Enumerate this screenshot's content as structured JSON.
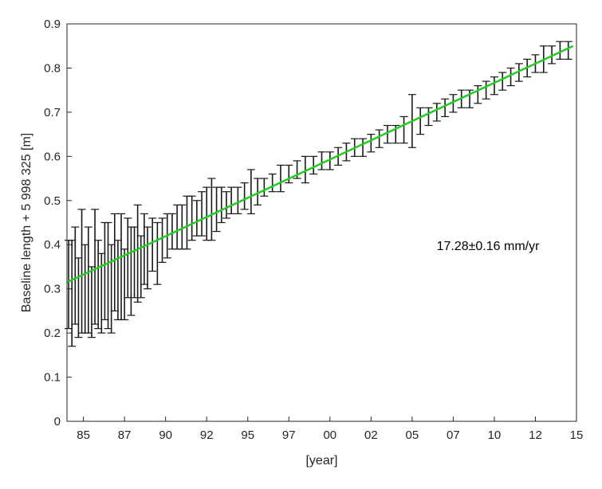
{
  "chart_data": {
    "type": "scatter",
    "title": "",
    "xlabel": "[year]",
    "ylabel": "Baseline length + 5 998 325 [m]",
    "xlim": [
      1984.0,
      2015.0
    ],
    "ylim": [
      0,
      0.9
    ],
    "xticks": [
      {
        "value": 1985,
        "label": "85"
      },
      {
        "value": 1987.5,
        "label": "87"
      },
      {
        "value": 1990,
        "label": "90"
      },
      {
        "value": 1992.5,
        "label": "92"
      },
      {
        "value": 1995,
        "label": "95"
      },
      {
        "value": 1997.5,
        "label": "97"
      },
      {
        "value": 2000,
        "label": "00"
      },
      {
        "value": 2002.5,
        "label": "02"
      },
      {
        "value": 2005,
        "label": "05"
      },
      {
        "value": 2007.5,
        "label": "07"
      },
      {
        "value": 2010,
        "label": "10"
      },
      {
        "value": 2012.5,
        "label": "12"
      },
      {
        "value": 2015,
        "label": "15"
      }
    ],
    "yticks": [
      0,
      0.1,
      0.2,
      0.3,
      0.4,
      0.5,
      0.6,
      0.7,
      0.8,
      0.9
    ],
    "ytick_labels": [
      "0",
      "0.1",
      "0.2",
      "0.3",
      "0.4",
      "0.5",
      "0.6",
      "0.7",
      "0.8",
      "0.9"
    ],
    "grid": false,
    "fit_line": {
      "x": [
        1984.0,
        2014.8
      ],
      "y": [
        0.315,
        0.85
      ],
      "color": "#22cc22"
    },
    "annotation": "17.28±0.16 mm/yr",
    "errorbar_color": "#1a1a1a",
    "series": [
      {
        "x": [
          1984.1,
          1984.3,
          1984.5,
          1984.7,
          1984.9,
          1985.1,
          1985.3,
          1985.5,
          1985.7,
          1985.9,
          1986.1,
          1986.3,
          1986.5,
          1986.7,
          1986.9,
          1987.1,
          1987.3,
          1987.5,
          1987.7,
          1987.9,
          1988.1,
          1988.3,
          1988.5,
          1988.7,
          1988.9,
          1989.2,
          1989.5,
          1989.8,
          1990.1,
          1990.4,
          1990.7,
          1991.0,
          1991.3,
          1991.6,
          1991.9,
          1992.2,
          1992.5,
          1992.8,
          1993.1,
          1993.4,
          1993.7,
          1994.0,
          1994.4,
          1994.8,
          1995.2,
          1995.6,
          1996.0,
          1996.5,
          1997.0,
          1997.5,
          1998.0,
          1998.5,
          1999.0,
          1999.5,
          2000.0,
          2000.5,
          2001.0,
          2001.5,
          2002.0,
          2002.5,
          2003.0,
          2003.5,
          2004.0,
          2004.5,
          2005.0,
          2005.5,
          2006.0,
          2006.5,
          2007.0,
          2007.5,
          2008.0,
          2008.5,
          2009.0,
          2009.5,
          2010.0,
          2010.5,
          2011.0,
          2011.5,
          2012.0,
          2012.5,
          2013.0,
          2013.5,
          2014.0,
          2014.5
        ],
        "y": [
          0.31,
          0.29,
          0.33,
          0.28,
          0.34,
          0.3,
          0.32,
          0.27,
          0.35,
          0.31,
          0.29,
          0.34,
          0.33,
          0.3,
          0.36,
          0.32,
          0.35,
          0.31,
          0.37,
          0.34,
          0.36,
          0.38,
          0.35,
          0.39,
          0.37,
          0.4,
          0.38,
          0.41,
          0.42,
          0.43,
          0.44,
          0.44,
          0.45,
          0.46,
          0.46,
          0.47,
          0.47,
          0.48,
          0.48,
          0.49,
          0.49,
          0.5,
          0.5,
          0.51,
          0.52,
          0.52,
          0.53,
          0.54,
          0.55,
          0.56,
          0.57,
          0.57,
          0.58,
          0.59,
          0.59,
          0.6,
          0.61,
          0.62,
          0.62,
          0.63,
          0.64,
          0.65,
          0.65,
          0.66,
          0.68,
          0.68,
          0.69,
          0.7,
          0.71,
          0.72,
          0.73,
          0.73,
          0.74,
          0.75,
          0.76,
          0.77,
          0.78,
          0.79,
          0.8,
          0.81,
          0.82,
          0.83,
          0.84,
          0.84
        ],
        "err": [
          0.1,
          0.12,
          0.11,
          0.09,
          0.14,
          0.1,
          0.12,
          0.08,
          0.13,
          0.1,
          0.09,
          0.11,
          0.12,
          0.1,
          0.11,
          0.09,
          0.12,
          0.08,
          0.09,
          0.1,
          0.08,
          0.11,
          0.07,
          0.08,
          0.07,
          0.06,
          0.07,
          0.05,
          0.05,
          0.04,
          0.05,
          0.05,
          0.06,
          0.05,
          0.04,
          0.05,
          0.06,
          0.07,
          0.05,
          0.04,
          0.03,
          0.03,
          0.03,
          0.03,
          0.05,
          0.03,
          0.02,
          0.02,
          0.03,
          0.02,
          0.02,
          0.03,
          0.02,
          0.02,
          0.02,
          0.02,
          0.02,
          0.02,
          0.02,
          0.02,
          0.02,
          0.02,
          0.02,
          0.03,
          0.06,
          0.03,
          0.02,
          0.02,
          0.02,
          0.02,
          0.02,
          0.02,
          0.02,
          0.02,
          0.02,
          0.02,
          0.02,
          0.02,
          0.02,
          0.02,
          0.03,
          0.02,
          0.02,
          0.02
        ]
      }
    ]
  }
}
